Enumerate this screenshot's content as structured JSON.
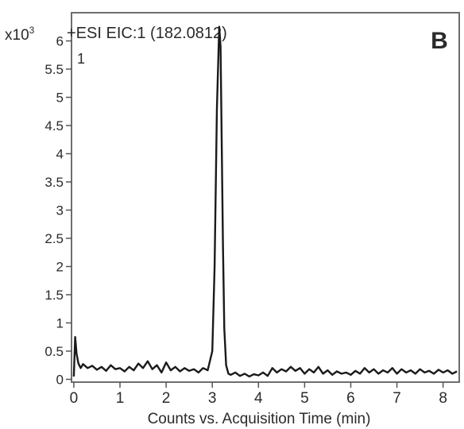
{
  "chart_data": {
    "type": "line",
    "header": "+ESI EIC:1 (182.0812)",
    "panel_label": "B",
    "trace_label": "1",
    "y_multiplier": "x10",
    "y_multiplier_exp": "3",
    "xlabel": "Counts vs. Acquisition Time (min)",
    "ylabel": "",
    "xlim": [
      -0.05,
      8.35
    ],
    "ylim": [
      -0.05,
      6.5
    ],
    "x_ticks": [
      0,
      1,
      2,
      3,
      4,
      5,
      6,
      7,
      8
    ],
    "x_tick_labels": [
      "0",
      "1",
      "2",
      "3",
      "4",
      "5",
      "6",
      "7",
      "8"
    ],
    "y_ticks": [
      0,
      0.5,
      1,
      1.5,
      2,
      2.5,
      3,
      3.5,
      4,
      4.5,
      5,
      5.5,
      6
    ],
    "y_tick_labels": [
      "0",
      "0.5",
      "1",
      "1.5",
      "2",
      "2.5",
      "3",
      "3.5",
      "4",
      "4.5",
      "5",
      "5.5",
      "6"
    ],
    "grid": false,
    "colors": {
      "trace": "#1a1a1a",
      "frame": "#6e6e6e",
      "background": "#ffffff"
    },
    "series": [
      {
        "x": [
          0.0,
          0.03,
          0.06,
          0.1,
          0.15,
          0.2,
          0.3,
          0.4,
          0.5,
          0.6,
          0.7,
          0.8,
          0.9,
          1.0,
          1.1,
          1.2,
          1.3,
          1.4,
          1.5,
          1.6,
          1.7,
          1.8,
          1.9,
          2.0,
          2.1,
          2.2,
          2.3,
          2.4,
          2.5,
          2.6,
          2.7,
          2.8,
          2.9,
          3.0,
          3.05,
          3.1,
          3.15,
          3.18,
          3.2,
          3.23,
          3.26,
          3.3,
          3.35,
          3.4,
          3.5,
          3.6,
          3.7,
          3.8,
          3.9,
          4.0,
          4.1,
          4.2,
          4.3,
          4.4,
          4.5,
          4.6,
          4.7,
          4.8,
          4.9,
          5.0,
          5.1,
          5.2,
          5.3,
          5.4,
          5.5,
          5.6,
          5.7,
          5.8,
          5.9,
          6.0,
          6.1,
          6.2,
          6.3,
          6.4,
          6.5,
          6.6,
          6.7,
          6.8,
          6.9,
          7.0,
          7.1,
          7.2,
          7.3,
          7.4,
          7.5,
          7.6,
          7.7,
          7.8,
          7.9,
          8.0,
          8.1,
          8.2,
          8.3
        ],
        "y": [
          0.05,
          0.75,
          0.45,
          0.28,
          0.2,
          0.27,
          0.2,
          0.24,
          0.17,
          0.22,
          0.15,
          0.25,
          0.18,
          0.2,
          0.14,
          0.22,
          0.16,
          0.28,
          0.2,
          0.32,
          0.18,
          0.25,
          0.12,
          0.3,
          0.16,
          0.22,
          0.14,
          0.2,
          0.15,
          0.18,
          0.12,
          0.2,
          0.16,
          0.5,
          2.0,
          4.8,
          6.25,
          5.9,
          4.5,
          2.4,
          0.9,
          0.25,
          0.1,
          0.08,
          0.12,
          0.06,
          0.1,
          0.05,
          0.09,
          0.07,
          0.12,
          0.06,
          0.2,
          0.12,
          0.18,
          0.14,
          0.22,
          0.15,
          0.2,
          0.1,
          0.18,
          0.12,
          0.22,
          0.1,
          0.16,
          0.08,
          0.14,
          0.1,
          0.12,
          0.08,
          0.15,
          0.1,
          0.2,
          0.12,
          0.18,
          0.1,
          0.16,
          0.12,
          0.2,
          0.1,
          0.18,
          0.12,
          0.16,
          0.1,
          0.18,
          0.12,
          0.15,
          0.1,
          0.17,
          0.12,
          0.16,
          0.1,
          0.14
        ]
      }
    ]
  }
}
